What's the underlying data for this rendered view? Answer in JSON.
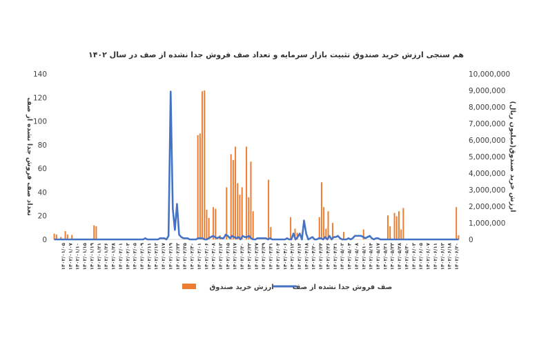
{
  "chart_data": {
    "type": "bar+line",
    "title": "هم سنجی ارزش خرید صندوق تثبیت بازار سرمایه و تعداد صف فروش جدا نشده از صف در سال ۱۴۰۲",
    "y_left_label": "تعداد صف فروش جدا نشده از صف",
    "y_right_label": "ارزش خرید صندوق(میلیون ریال)",
    "y_left_ticks": [
      "0",
      "20",
      "40",
      "60",
      "80",
      "100",
      "120",
      "140"
    ],
    "y_left_range": [
      0,
      140
    ],
    "y_right_ticks": [
      "0",
      "1,000,000",
      "2,000,000",
      "3,000,000",
      "4,000,000",
      "5,000,000",
      "6,000,000",
      "7,000,000",
      "8,000,000",
      "9,000,000",
      "10,000,000"
    ],
    "y_right_range": [
      0,
      10000000
    ],
    "x_tick_labels": [
      "۱۴۰۲/۰۱/۰۵",
      "۱۴۰۲/۰۱/۰۷",
      "۱۴۰۲/۰۱/۱۰",
      "۱۴۰۲/۰۱/۱۵",
      "۱۴۰۲/۰۱/۱۹",
      "۱۴۰۲/۰۱/۲۱",
      "۱۴۰۲/۰۱/۲۶",
      "۱۴۰۲/۰۱/۲۸",
      "۱۴۰۲/۰۲/۰۱",
      "۱۴۰۲/۰۲/۰۳",
      "۱۴۰۲/۰۲/۰۵",
      "۱۴۰۲/۰۲/۰۹",
      "۱۴۰۲/۰۲/۱۱",
      "۱۴۰۲/۰۲/۱۳",
      "۱۴۰۲/۰۲/۱۷",
      "۱۴۰۲/۰۲/۱۹",
      "۱۴۰۲/۰۲/۲۳",
      "۱۴۰۲/۰۲/۲۵",
      "۱۴۰۲/۰۲/۳۰",
      "۱۴۰۲/۰۳/۰۱",
      "۱۴۰۲/۰۳/۰۶",
      "۱۴۰۲/۰۳/۰۸",
      "۱۴۰۲/۰۳/۱۳",
      "۱۴۰۲/۰۳/۱۵",
      "۱۴۰۲/۰۳/۱۷",
      "۱۴۰۲/۰۳/۲۰",
      "۱۴۰۲/۰۳/۲۲",
      "۱۴۰۲/۰۳/۲۷",
      "۱۴۰۲/۰۳/۲۹",
      "۱۴۰۲/۰۳/۳۱",
      "۱۴۰۲/۰۴/۰۴",
      "۱۴۰۲/۰۴/۰۶",
      "۱۴۰۲/۰۴/۱۲",
      "۱۴۰۲/۰۴/۱۴",
      "۱۴۰۲/۰۴/۱۸",
      "۱۴۰۲/۰۴/۲۰",
      "۱۴۰۲/۰۴/۲۴",
      "۱۴۰۲/۰۴/۲۶",
      "۱۴۰۲/۰۴/۳۱",
      "۱۴۰۲/۰۵/۰۲",
      "۱۴۰۲/۰۵/۰۴",
      "۱۴۰۲/۰۵/۰۸",
      "۱۴۰۲/۰۵/۱۰",
      "۱۴۰۲/۰۵/۱۴",
      "۱۴۰۲/۰۵/۱۷",
      "۱۴۰۲/۰۵/۲۱",
      "۱۴۰۲/۰۵/۲۳",
      "۱۴۰۲/۰۵/۲۸",
      "۱۴۰۲/۰۵/۳۰",
      "۱۴۰۲/۰۶/۰۳",
      "۱۴۰۲/۰۶/۰۵",
      "۱۴۰۲/۰۶/۰۷",
      "۱۴۰۲/۰۶/۱۱",
      "۱۴۰۲/۰۶/۱۳",
      "۱۴۰۲/۰۶/۱۸",
      "۱۴۰۲/۰۶/۲۰"
    ],
    "bars": {
      "name": "ارزش خرید صندوق",
      "axis": "right",
      "color": "#ED7D31",
      "values": [
        350000,
        300000,
        0,
        150000,
        0,
        500000,
        300000,
        0,
        270000,
        0,
        0,
        0,
        0,
        0,
        0,
        0,
        0,
        0,
        850000,
        800000,
        0,
        0,
        0,
        0,
        0,
        0,
        0,
        0,
        0,
        0,
        0,
        0,
        0,
        0,
        0,
        0,
        0,
        0,
        0,
        0,
        0,
        0,
        0,
        0,
        0,
        0,
        0,
        0,
        0,
        0,
        0,
        0,
        0,
        0,
        0,
        0,
        0,
        0,
        0,
        0,
        0,
        0,
        0,
        0,
        0,
        6300000,
        6400000,
        8950000,
        9000000,
        1800000,
        1300000,
        0,
        1950000,
        1850000,
        0,
        250000,
        0,
        0,
        3150000,
        0,
        5150000,
        4800000,
        5600000,
        3400000,
        2700000,
        3150000,
        0,
        5600000,
        2550000,
        4700000,
        1700000,
        0,
        0,
        0,
        0,
        0,
        0,
        3600000,
        750000,
        0,
        0,
        0,
        0,
        0,
        0,
        0,
        0,
        1350000,
        0,
        650000,
        400000,
        0,
        0,
        0,
        0,
        0,
        0,
        0,
        0,
        0,
        1350000,
        3450000,
        1950000,
        650000,
        1700000,
        0,
        1000000,
        0,
        0,
        0,
        0,
        450000,
        0,
        0,
        0,
        0,
        0,
        0,
        0,
        0,
        600000,
        0,
        0,
        0,
        0,
        0,
        0,
        0,
        0,
        0,
        0,
        1450000,
        800000,
        0,
        1600000,
        1400000,
        1700000,
        600000,
        1900000,
        0,
        0,
        0,
        0,
        0,
        0,
        0,
        0,
        0,
        0,
        0,
        0,
        0,
        0,
        0,
        0,
        0,
        0,
        0,
        0,
        0,
        0,
        0,
        1950000,
        250000
      ]
    },
    "line": {
      "name": "صف فروش جدا نشده از صف",
      "axis": "left",
      "color": "#4472C4",
      "values": [
        0,
        0,
        0,
        0,
        0,
        0,
        0,
        0,
        0,
        0,
        0,
        0,
        0,
        0,
        0,
        0,
        0,
        0,
        0,
        0,
        0,
        0,
        0,
        0,
        0,
        0,
        0,
        0,
        0,
        0,
        0,
        0,
        0,
        0,
        0,
        0,
        0,
        0,
        0,
        0,
        0,
        0,
        0,
        1,
        0,
        0,
        0,
        0,
        0,
        0,
        1,
        1,
        1,
        0,
        3,
        125,
        26,
        8,
        30,
        4,
        2,
        1,
        1,
        1,
        0,
        0,
        0,
        0,
        1,
        1,
        1,
        0,
        0,
        1,
        2,
        3,
        2,
        1,
        2,
        1,
        1,
        4,
        3,
        1,
        3,
        2,
        1,
        2,
        0,
        3,
        2,
        2,
        3,
        1,
        0,
        0,
        1,
        1,
        1,
        1,
        1,
        0,
        1,
        0,
        0,
        0,
        0,
        0,
        0,
        0,
        1,
        0,
        0,
        5,
        0,
        2,
        5,
        0,
        16,
        5,
        0,
        1,
        2,
        0,
        0,
        1,
        1,
        0,
        2,
        0,
        3,
        0,
        2,
        2,
        3,
        1,
        0,
        0,
        0,
        1,
        0,
        1,
        3,
        3,
        3,
        3,
        2,
        1,
        2,
        3,
        1,
        0,
        1,
        1,
        0,
        0,
        0,
        0,
        0,
        0,
        0,
        0,
        0,
        0,
        0,
        0,
        0,
        0,
        0,
        0,
        0,
        0,
        0,
        0,
        0,
        0,
        0,
        0,
        0,
        0,
        0,
        0,
        0,
        0,
        0,
        0,
        0,
        0,
        0,
        0,
        0,
        0
      ]
    },
    "legend": [
      "ارزش خرید صندوق",
      "صف فروش جدا نشده از صف"
    ],
    "legend_position": "bottom",
    "grid": false
  }
}
